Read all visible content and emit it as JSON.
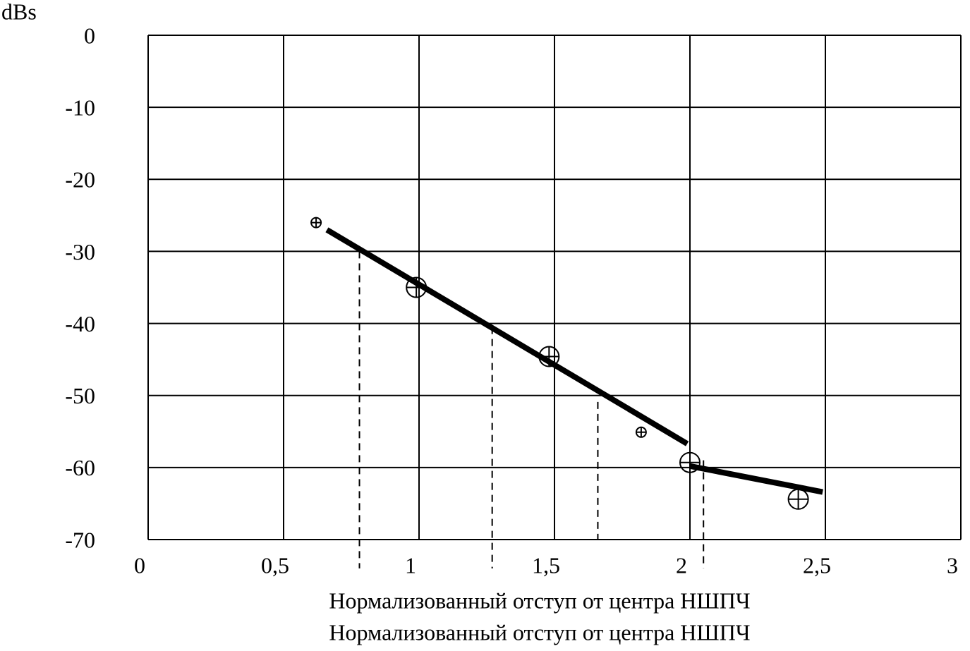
{
  "chart_data": {
    "type": "line",
    "ylabel": "dBs",
    "xlabel_lines": [
      "Нормализованный отступ от центра НШПЧ",
      "Нормализованный отступ от центра НШПЧ"
    ],
    "xlim": [
      0,
      3
    ],
    "ylim": [
      -70,
      0
    ],
    "xticks": [
      0,
      {
        "value": 0.5,
        "label": "0,5"
      },
      1,
      {
        "value": 1.5,
        "label": "1,5"
      },
      2,
      {
        "value": 2.5,
        "label": "2,5"
      },
      3
    ],
    "yticks": [
      0,
      -10,
      -20,
      -30,
      -40,
      -50,
      -60,
      -70
    ],
    "grid": true,
    "series": [
      {
        "color": "#000000",
        "x": [
          0.66,
          1.99,
          1.995,
          2.0,
          2.49
        ],
        "values": [
          -27,
          -56.7,
          null,
          -59.8,
          -63.4
        ]
      }
    ],
    "markers": {
      "color": "#000000",
      "x": [
        0.62,
        0.99,
        1.48,
        1.82,
        2.0,
        2.4
      ],
      "values": [
        -26,
        -35,
        -44.6,
        -55.1,
        -59.3,
        -64.4
      ],
      "sizes": [
        1,
        2,
        2,
        1,
        2,
        2
      ]
    },
    "dashed_lines": [
      {
        "x": 0.78,
        "y": [
          -30,
          -74
        ]
      },
      {
        "x": 1.27,
        "y": [
          -40.5,
          -74
        ]
      },
      {
        "x": 1.66,
        "y": [
          -50.9,
          -70
        ]
      },
      {
        "x": 2.05,
        "y": [
          -59,
          -74
        ]
      }
    ]
  }
}
